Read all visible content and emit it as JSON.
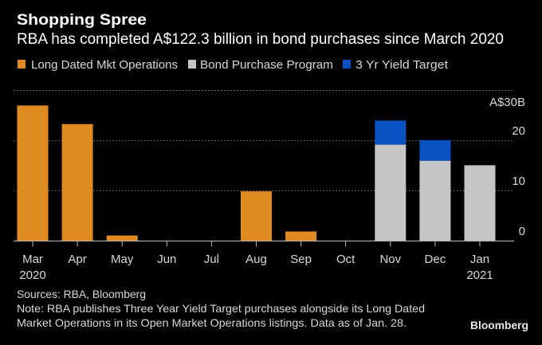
{
  "chart_data": {
    "type": "bar",
    "stacked": true,
    "title": "Shopping Spree",
    "subtitle": "RBA has completed A$122.3 billion in bond purchases since March 2020",
    "categories": [
      "Mar",
      "Apr",
      "May",
      "Jun",
      "Jul",
      "Aug",
      "Sep",
      "Oct",
      "Nov",
      "Dec",
      "Jan"
    ],
    "category_sublabels": [
      "2020",
      "",
      "",
      "",
      "",
      "",
      "",
      "",
      "",
      "",
      "2021"
    ],
    "series": [
      {
        "name": "Long Dated Mkt Operations",
        "color": "#e08b22",
        "values": [
          27.0,
          23.3,
          1.1,
          0,
          0,
          9.9,
          1.9,
          0,
          0,
          0,
          0
        ]
      },
      {
        "name": "Bond Purchase Program",
        "color": "#c4c4c4",
        "values": [
          0,
          0,
          0,
          0,
          0,
          0,
          0,
          0,
          19.2,
          16.0,
          15.1
        ]
      },
      {
        "name": "3 Yr Yield Target",
        "color": "#0a52c4",
        "values": [
          0,
          0,
          0,
          0,
          0,
          0,
          0,
          0,
          4.8,
          4.1,
          0
        ]
      }
    ],
    "ylim": [
      0,
      30
    ],
    "yticks": [
      0,
      10,
      20,
      30
    ],
    "ytick_labels": [
      "0",
      "10",
      "20",
      "A$30B"
    ],
    "y_axis_position": "right",
    "grid": true,
    "legend_position": "top-left"
  },
  "footer": {
    "sources": "Sources: RBA, Bloomberg",
    "note_line1": "Note: RBA publishes Three Year Yield Target purchases alongside its Long Dated",
    "note_line2": "Market Operations in its Open Market Operations listings. Data as of Jan. 28.",
    "logo": "Bloomberg"
  }
}
